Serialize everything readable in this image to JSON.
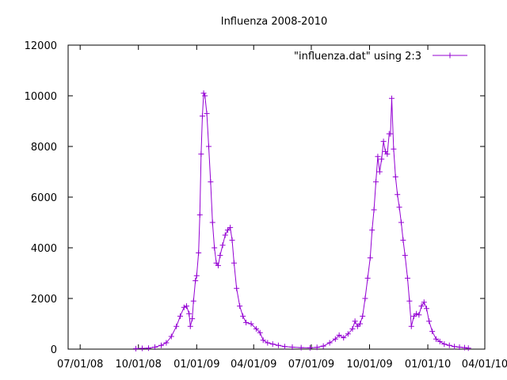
{
  "chart_data": {
    "type": "line",
    "title": "Influenza 2008-2010",
    "xlabel": "",
    "ylabel": "",
    "x_axis": {
      "type": "date",
      "min": "2008-06-12",
      "max": "2010-04-01"
    },
    "y_range": [
      0,
      12000
    ],
    "y_ticks": [
      0,
      2000,
      4000,
      6000,
      8000,
      10000,
      12000
    ],
    "x_ticks": [
      {
        "date": "2008-07-01",
        "label": "07/01/08"
      },
      {
        "date": "2008-10-01",
        "label": "10/01/08"
      },
      {
        "date": "2009-01-01",
        "label": "01/01/09"
      },
      {
        "date": "2009-04-01",
        "label": "04/01/09"
      },
      {
        "date": "2009-07-01",
        "label": "07/01/09"
      },
      {
        "date": "2009-10-01",
        "label": "10/01/09"
      },
      {
        "date": "2010-01-01",
        "label": "01/01/10"
      },
      {
        "date": "2010-04-01",
        "label": "04/01/10"
      }
    ],
    "grid": false,
    "legend_position": "top-right",
    "marker": "plus",
    "series": [
      {
        "name": "\"influenza.dat\" using 2:3",
        "color": "#9400d3",
        "points": [
          [
            "2008-09-27",
            20
          ],
          [
            "2008-10-07",
            30
          ],
          [
            "2008-10-17",
            40
          ],
          [
            "2008-10-27",
            80
          ],
          [
            "2008-11-06",
            150
          ],
          [
            "2008-11-14",
            250
          ],
          [
            "2008-11-22",
            500
          ],
          [
            "2008-11-30",
            900
          ],
          [
            "2008-12-06",
            1300
          ],
          [
            "2008-12-12",
            1650
          ],
          [
            "2008-12-16",
            1700
          ],
          [
            "2008-12-20",
            1400
          ],
          [
            "2008-12-22",
            900
          ],
          [
            "2008-12-25",
            1200
          ],
          [
            "2008-12-27",
            1900
          ],
          [
            "2008-12-30",
            2700
          ],
          [
            "2009-01-01",
            2900
          ],
          [
            "2009-01-04",
            3800
          ],
          [
            "2009-01-06",
            5300
          ],
          [
            "2009-01-08",
            7700
          ],
          [
            "2009-01-10",
            9200
          ],
          [
            "2009-01-12",
            10100
          ],
          [
            "2009-01-14",
            10000
          ],
          [
            "2009-01-17",
            9300
          ],
          [
            "2009-01-20",
            8000
          ],
          [
            "2009-01-23",
            6600
          ],
          [
            "2009-01-26",
            5000
          ],
          [
            "2009-01-29",
            4000
          ],
          [
            "2009-02-01",
            3400
          ],
          [
            "2009-02-04",
            3300
          ],
          [
            "2009-02-07",
            3700
          ],
          [
            "2009-02-11",
            4100
          ],
          [
            "2009-02-15",
            4500
          ],
          [
            "2009-02-19",
            4700
          ],
          [
            "2009-02-23",
            4800
          ],
          [
            "2009-02-26",
            4300
          ],
          [
            "2009-03-01",
            3400
          ],
          [
            "2009-03-05",
            2400
          ],
          [
            "2009-03-10",
            1700
          ],
          [
            "2009-03-15",
            1300
          ],
          [
            "2009-03-20",
            1050
          ],
          [
            "2009-03-28",
            1000
          ],
          [
            "2009-04-05",
            800
          ],
          [
            "2009-04-11",
            650
          ],
          [
            "2009-04-16",
            350
          ],
          [
            "2009-04-23",
            250
          ],
          [
            "2009-05-01",
            200
          ],
          [
            "2009-05-10",
            150
          ],
          [
            "2009-05-20",
            100
          ],
          [
            "2009-06-01",
            80
          ],
          [
            "2009-06-15",
            60
          ],
          [
            "2009-06-29",
            50
          ],
          [
            "2009-07-10",
            70
          ],
          [
            "2009-07-20",
            120
          ],
          [
            "2009-07-30",
            250
          ],
          [
            "2009-08-08",
            400
          ],
          [
            "2009-08-14",
            550
          ],
          [
            "2009-08-21",
            450
          ],
          [
            "2009-08-28",
            600
          ],
          [
            "2009-09-04",
            800
          ],
          [
            "2009-09-08",
            1100
          ],
          [
            "2009-09-12",
            900
          ],
          [
            "2009-09-16",
            1000
          ],
          [
            "2009-09-20",
            1300
          ],
          [
            "2009-09-24",
            2000
          ],
          [
            "2009-09-28",
            2800
          ],
          [
            "2009-10-02",
            3600
          ],
          [
            "2009-10-05",
            4700
          ],
          [
            "2009-10-08",
            5500
          ],
          [
            "2009-10-11",
            6600
          ],
          [
            "2009-10-14",
            7600
          ],
          [
            "2009-10-17",
            7000
          ],
          [
            "2009-10-20",
            7500
          ],
          [
            "2009-10-23",
            8200
          ],
          [
            "2009-10-26",
            7800
          ],
          [
            "2009-10-29",
            7700
          ],
          [
            "2009-11-01",
            8500
          ],
          [
            "2009-11-03",
            8500
          ],
          [
            "2009-11-05",
            9900
          ],
          [
            "2009-11-08",
            7900
          ],
          [
            "2009-11-11",
            6800
          ],
          [
            "2009-11-14",
            6100
          ],
          [
            "2009-11-17",
            5600
          ],
          [
            "2009-11-20",
            5000
          ],
          [
            "2009-11-23",
            4300
          ],
          [
            "2009-11-26",
            3700
          ],
          [
            "2009-11-30",
            2800
          ],
          [
            "2009-12-03",
            1900
          ],
          [
            "2009-12-06",
            900
          ],
          [
            "2009-12-10",
            1300
          ],
          [
            "2009-12-14",
            1400
          ],
          [
            "2009-12-18",
            1350
          ],
          [
            "2009-12-22",
            1700
          ],
          [
            "2009-12-26",
            1850
          ],
          [
            "2009-12-30",
            1600
          ],
          [
            "2010-01-03",
            1100
          ],
          [
            "2010-01-08",
            700
          ],
          [
            "2010-01-14",
            400
          ],
          [
            "2010-01-20",
            300
          ],
          [
            "2010-01-27",
            200
          ],
          [
            "2010-02-04",
            150
          ],
          [
            "2010-02-12",
            100
          ],
          [
            "2010-02-20",
            80
          ],
          [
            "2010-02-28",
            60
          ],
          [
            "2010-03-06",
            40
          ]
        ]
      }
    ]
  }
}
